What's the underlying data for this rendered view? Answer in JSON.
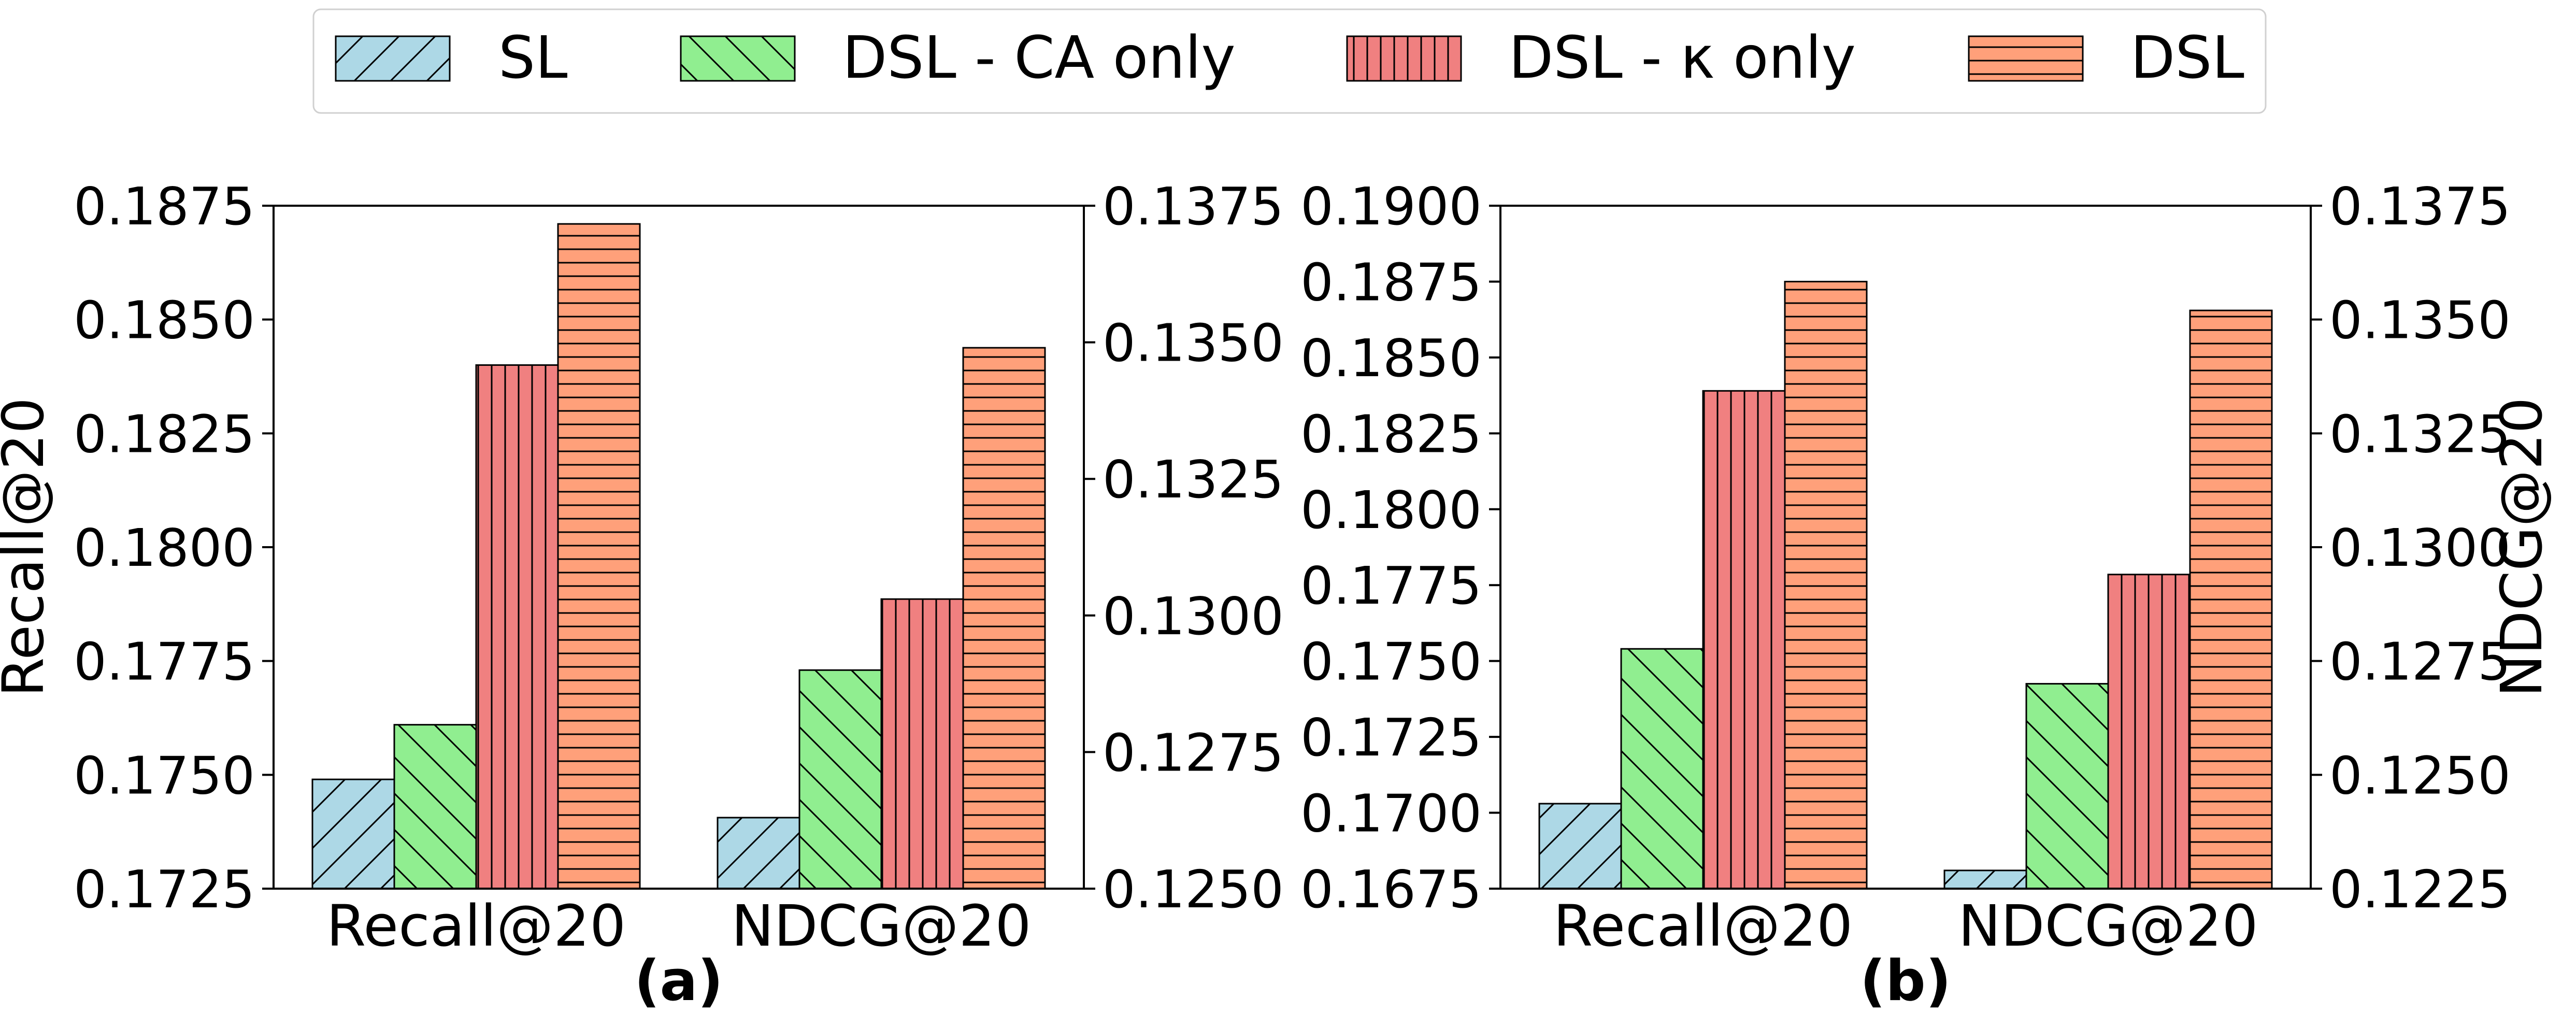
{
  "legend": [
    {
      "label": "SL",
      "color": "#add8e6",
      "hatch": "diag-up"
    },
    {
      "label": "DSL - CA only",
      "color": "#90ee90",
      "hatch": "diag-down"
    },
    {
      "label": "DSL - κ only",
      "color": "#f08080",
      "hatch": "vertical"
    },
    {
      "label": "DSL",
      "color": "#ffa07a",
      "hatch": "horizontal"
    }
  ],
  "chart_data": [
    {
      "type": "bar",
      "panel_label": "(a)",
      "categories": [
        "Recall@20",
        "NDCG@20"
      ],
      "ylabel_left": "Recall@20",
      "ylabel_right": "",
      "ylim_left": [
        0.1725,
        0.1875
      ],
      "yticks_left": [
        "0.1725",
        "0.1750",
        "0.1775",
        "0.1800",
        "0.1825",
        "0.1850",
        "0.1875"
      ],
      "ylim_right": [
        0.125,
        0.1375
      ],
      "yticks_right": [
        "0.1250",
        "0.1275",
        "0.1300",
        "0.1325",
        "0.1350",
        "0.1375"
      ],
      "series": [
        {
          "name": "SL",
          "values": [
            0.1749,
            0.1263
          ]
        },
        {
          "name": "DSL - CA only",
          "values": [
            0.1761,
            0.129
          ]
        },
        {
          "name": "DSL - κ only",
          "values": [
            0.184,
            0.1303
          ]
        },
        {
          "name": "DSL",
          "values": [
            0.1871,
            0.1349
          ]
        }
      ]
    },
    {
      "type": "bar",
      "panel_label": "(b)",
      "categories": [
        "Recall@20",
        "NDCG@20"
      ],
      "ylabel_left": "",
      "ylabel_right": "NDCG@20",
      "ylim_left": [
        0.1675,
        0.19
      ],
      "yticks_left": [
        "0.1675",
        "0.1700",
        "0.1725",
        "0.1750",
        "0.1775",
        "0.1800",
        "0.1825",
        "0.1850",
        "0.1875",
        "0.1900"
      ],
      "ylim_right": [
        0.1225,
        0.1375
      ],
      "yticks_right": [
        "0.1225",
        "0.1250",
        "0.1275",
        "0.1300",
        "0.1325",
        "0.1350",
        "0.1375"
      ],
      "series": [
        {
          "name": "SL",
          "values": [
            0.1703,
            0.1229
          ]
        },
        {
          "name": "DSL - CA only",
          "values": [
            0.1754,
            0.127
          ]
        },
        {
          "name": "DSL - κ only",
          "values": [
            0.1839,
            0.1294
          ]
        },
        {
          "name": "DSL",
          "values": [
            0.1875,
            0.1352
          ]
        }
      ]
    }
  ]
}
